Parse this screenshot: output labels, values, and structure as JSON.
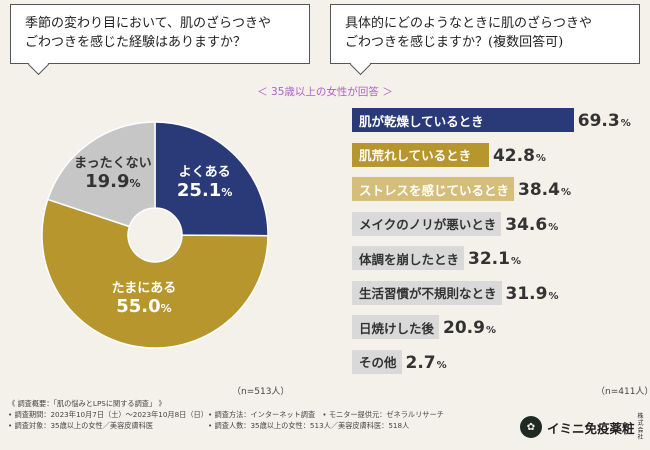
{
  "questions": {
    "left": [
      "季節の変わり目において、肌のざらつきや",
      "ごわつきを感じた経験はありますか？"
    ],
    "right": [
      "具体的にどのようなときに肌のざらつきや",
      "ごわつきを感じますか？(複数回答可)"
    ]
  },
  "subtitle": "＜ 35歳以上の女性が回答 ＞",
  "chart_data": [
    {
      "type": "pie",
      "slices": [
        {
          "label": "よくある",
          "value": 25.1,
          "color": "#2a3a78"
        },
        {
          "label": "たまにある",
          "value": 55.0,
          "color": "#b8962e"
        },
        {
          "label": "まったくない",
          "value": 19.9,
          "color": "#c6c6c6"
        }
      ],
      "unit": "%",
      "note": "（n=513人）"
    },
    {
      "type": "bar",
      "orientation": "horizontal",
      "categories": [
        "肌が乾燥しているとき",
        "肌荒れしているとき",
        "ストレスを感じているとき",
        "メイクのノリが悪いとき",
        "体調を崩したとき",
        "生活習慣が不規則なとき",
        "日焼けした後",
        "その他"
      ],
      "values": [
        69.3,
        42.8,
        38.4,
        34.6,
        32.1,
        31.9,
        20.9,
        2.7
      ],
      "colors": [
        "#2a3a78",
        "#b8962e",
        "#d4be7a",
        "#d9d9d9",
        "#d9d9d9",
        "#d9d9d9",
        "#d9d9d9",
        "#d9d9d9"
      ],
      "unit": "%",
      "note": "（n=411人）"
    }
  ],
  "footer": {
    "title": "《 調査概要：「肌の悩みとLPSに関する調査」 》",
    "period": "• 調査期間：2023年10月7日（土）～2023年10月8日（日）",
    "target": "• 調査対象：35歳以上の女性／美容皮膚科医",
    "method": "• 調査方法：インターネット調査　• モニター提供元：ゼネラルリサーチ",
    "people": "• 調査人数：35歳以上の女性：513人／美容皮膚科医：518人"
  },
  "brand": {
    "logo_char": "✿",
    "name": "イミニ免疫薬粧",
    "suffix": "株式会社"
  }
}
